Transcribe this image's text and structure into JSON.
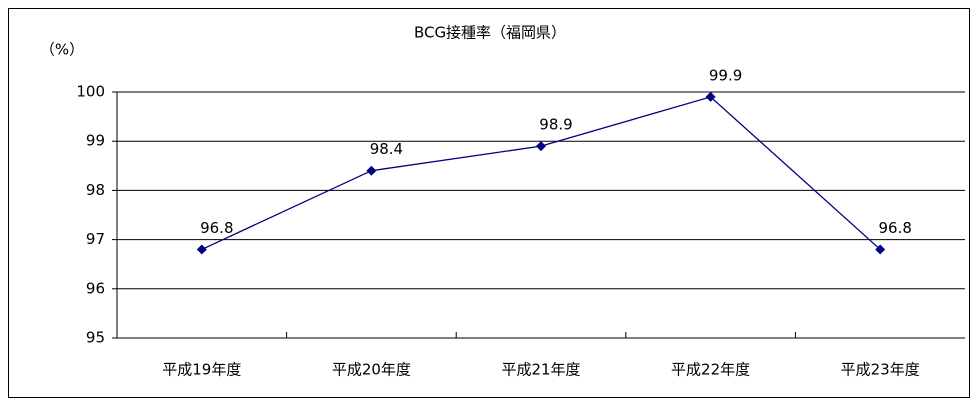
{
  "chart_data": {
    "type": "line",
    "title": "BCG接種率（福岡県）",
    "y_label": "（%）",
    "categories": [
      "平成19年度",
      "平成20年度",
      "平成21年度",
      "平成22年度",
      "平成23年度"
    ],
    "series": [
      {
        "name": "BCG接種率",
        "color": "#000080",
        "values": [
          96.8,
          98.4,
          98.9,
          99.9,
          96.8
        ]
      }
    ],
    "ylim": [
      95,
      100
    ],
    "yticks": [
      95,
      96,
      97,
      98,
      99,
      100
    ],
    "grid": true,
    "legend": false
  }
}
